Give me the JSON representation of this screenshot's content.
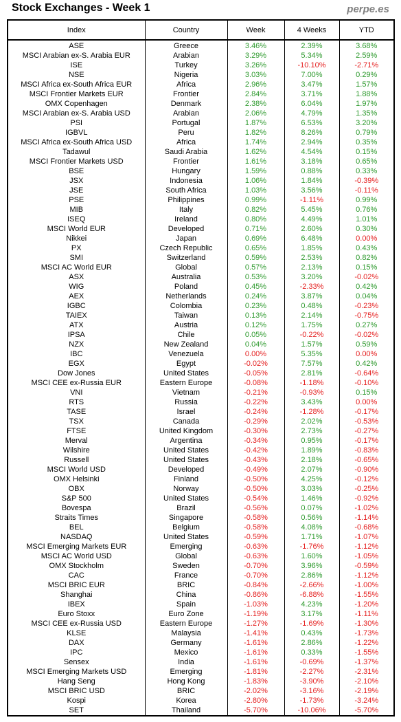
{
  "page": {
    "title": "Stock Exchanges - Week 1",
    "brand": "perpe.es"
  },
  "colors": {
    "positive": "#2e9a2e",
    "negative": "#e52020",
    "zero": "#e52020",
    "border": "#000000",
    "brand": "#808080"
  },
  "chart_data": {
    "type": "table",
    "title": "Stock Exchanges - Week 1",
    "columns": [
      "Index",
      "Country",
      "Week",
      "4 Weeks",
      "YTD"
    ],
    "rows": [
      [
        "ASE",
        "Greece",
        "3.46%",
        "2.39%",
        "3.68%"
      ],
      [
        "MSCI Arabian ex-S. Arabia EUR",
        "Arabian",
        "3.29%",
        "5.34%",
        "2.59%"
      ],
      [
        "ISE",
        "Turkey",
        "3.26%",
        "-10.10%",
        "-2.71%"
      ],
      [
        "NSE",
        "Nigeria",
        "3.03%",
        "7.00%",
        "0.29%"
      ],
      [
        "MSCI Africa ex-South Africa EUR",
        "Africa",
        "2.96%",
        "3.47%",
        "1.57%"
      ],
      [
        "MSCI Frontier Markets EUR",
        "Frontier",
        "2.84%",
        "3.71%",
        "1.88%"
      ],
      [
        "OMX Copenhagen",
        "Denmark",
        "2.38%",
        "6.04%",
        "1.97%"
      ],
      [
        "MSCI Arabian ex-S. Arabia USD",
        "Arabian",
        "2.06%",
        "4.79%",
        "1.35%"
      ],
      [
        "PSI",
        "Portugal",
        "1.87%",
        "6.53%",
        "3.20%"
      ],
      [
        "IGBVL",
        "Peru",
        "1.82%",
        "8.26%",
        "0.79%"
      ],
      [
        "MSCI Africa ex-South Africa USD",
        "Africa",
        "1.74%",
        "2.94%",
        "0.35%"
      ],
      [
        "Tadawul",
        "Saudi Arabia",
        "1.62%",
        "4.54%",
        "0.15%"
      ],
      [
        "MSCI Frontier Markets USD",
        "Frontier",
        "1.61%",
        "3.18%",
        "0.65%"
      ],
      [
        "BSE",
        "Hungary",
        "1.59%",
        "0.88%",
        "0.33%"
      ],
      [
        "JSX",
        "Indonesia",
        "1.06%",
        "1.84%",
        "-0.39%"
      ],
      [
        "JSE",
        "South Africa",
        "1.03%",
        "3.56%",
        "-0.11%"
      ],
      [
        "PSE",
        "Philippines",
        "0.99%",
        "-1.11%",
        "0.99%"
      ],
      [
        "MIB",
        "Italy",
        "0.82%",
        "5.45%",
        "0.76%"
      ],
      [
        "ISEQ",
        "Ireland",
        "0.80%",
        "4.49%",
        "1.01%"
      ],
      [
        "MSCI World EUR",
        "Developed",
        "0.71%",
        "2.60%",
        "0.30%"
      ],
      [
        "Nikkei",
        "Japan",
        "0.69%",
        "6.48%",
        "0.00%"
      ],
      [
        "PX",
        "Czech Republic",
        "0.65%",
        "1.85%",
        "0.43%"
      ],
      [
        "SMI",
        "Switzerland",
        "0.59%",
        "2.53%",
        "0.82%"
      ],
      [
        "MSCI AC World EUR",
        "Global",
        "0.57%",
        "2.13%",
        "0.15%"
      ],
      [
        "ASX",
        "Australia",
        "0.53%",
        "3.20%",
        "-0.02%"
      ],
      [
        "WIG",
        "Poland",
        "0.45%",
        "-2.33%",
        "0.42%"
      ],
      [
        "AEX",
        "Netherlands",
        "0.24%",
        "3.87%",
        "0.04%"
      ],
      [
        "IGBC",
        "Colombia",
        "0.23%",
        "0.48%",
        "-0.23%"
      ],
      [
        "TAIEX",
        "Taiwan",
        "0.13%",
        "2.14%",
        "-0.75%"
      ],
      [
        "ATX",
        "Austria",
        "0.12%",
        "1.75%",
        "0.27%"
      ],
      [
        "IPSA",
        "Chile",
        "0.05%",
        "-0.22%",
        "-0.02%"
      ],
      [
        "NZX",
        "New Zealand",
        "0.04%",
        "1.57%",
        "0.59%"
      ],
      [
        "IBC",
        "Venezuela",
        "0.00%",
        "5.35%",
        "0.00%"
      ],
      [
        "EGX",
        "Egypt",
        "-0.02%",
        "7.57%",
        "0.42%"
      ],
      [
        "Dow Jones",
        "United States",
        "-0.05%",
        "2.81%",
        "-0.64%"
      ],
      [
        "MSCI CEE ex-Russia EUR",
        "Eastern Europe",
        "-0.08%",
        "-1.18%",
        "-0.10%"
      ],
      [
        "VNI",
        "Vietnam",
        "-0.21%",
        "-0.93%",
        "0.15%"
      ],
      [
        "RTS",
        "Russia",
        "-0.22%",
        "3.43%",
        "0.00%"
      ],
      [
        "TASE",
        "Israel",
        "-0.24%",
        "-1.28%",
        "-0.17%"
      ],
      [
        "TSX",
        "Canada",
        "-0.29%",
        "2.02%",
        "-0.53%"
      ],
      [
        "FTSE",
        "United Kingdom",
        "-0.30%",
        "2.73%",
        "-0.27%"
      ],
      [
        "Merval",
        "Argentina",
        "-0.34%",
        "0.95%",
        "-0.17%"
      ],
      [
        "Wilshire",
        "United States",
        "-0.42%",
        "1.89%",
        "-0.83%"
      ],
      [
        "Russell",
        "United States",
        "-0.43%",
        "2.18%",
        "-0.65%"
      ],
      [
        "MSCI World USD",
        "Developed",
        "-0.49%",
        "2.07%",
        "-0.90%"
      ],
      [
        "OMX Helsinki",
        "Finland",
        "-0.50%",
        "4.25%",
        "-0.12%"
      ],
      [
        "OBX",
        "Norway",
        "-0.50%",
        "3.03%",
        "-0.25%"
      ],
      [
        "S&P 500",
        "United States",
        "-0.54%",
        "1.46%",
        "-0.92%"
      ],
      [
        "Bovespa",
        "Brazil",
        "-0.56%",
        "0.07%",
        "-1.02%"
      ],
      [
        "Straits Times",
        "Singapore",
        "-0.58%",
        "0.56%",
        "-1.14%"
      ],
      [
        "BEL",
        "Belgium",
        "-0.58%",
        "4.08%",
        "-0.68%"
      ],
      [
        "NASDAQ",
        "United States",
        "-0.59%",
        "1.71%",
        "-1.07%"
      ],
      [
        "MSCI Emerging Markets EUR",
        "Emerging",
        "-0.63%",
        "-1.76%",
        "-1.12%"
      ],
      [
        "MSCI AC World USD",
        "Global",
        "-0.63%",
        "1.60%",
        "-1.05%"
      ],
      [
        "OMX Stockholm",
        "Sweden",
        "-0.70%",
        "3.96%",
        "-0.59%"
      ],
      [
        "CAC",
        "France",
        "-0.70%",
        "2.86%",
        "-1.12%"
      ],
      [
        "MSCI BRIC EUR",
        "BRIC",
        "-0.84%",
        "-2.66%",
        "-1.00%"
      ],
      [
        "Shanghai",
        "China",
        "-0.86%",
        "-6.88%",
        "-1.55%"
      ],
      [
        "IBEX",
        "Spain",
        "-1.03%",
        "4.23%",
        "-1.20%"
      ],
      [
        "Euro Stoxx",
        "Euro Zone",
        "-1.19%",
        "3.17%",
        "-1.11%"
      ],
      [
        "MSCI CEE ex-Russia USD",
        "Eastern Europe",
        "-1.27%",
        "-1.69%",
        "-1.30%"
      ],
      [
        "KLSE",
        "Malaysia",
        "-1.41%",
        "0.43%",
        "-1.73%"
      ],
      [
        "DAX",
        "Germany",
        "-1.61%",
        "2.86%",
        "-1.22%"
      ],
      [
        "IPC",
        "Mexico",
        "-1.61%",
        "0.33%",
        "-1.55%"
      ],
      [
        "Sensex",
        "India",
        "-1.61%",
        "-0.69%",
        "-1.37%"
      ],
      [
        "MSCI Emerging Markets USD",
        "Emerging",
        "-1.81%",
        "-2.27%",
        "-2.31%"
      ],
      [
        "Hang Seng",
        "Hong Kong",
        "-1.83%",
        "-3.90%",
        "-2.10%"
      ],
      [
        "MSCI BRIC USD",
        "BRIC",
        "-2.02%",
        "-3.16%",
        "-2.19%"
      ],
      [
        "Kospi",
        "Korea",
        "-2.80%",
        "-1.73%",
        "-3.24%"
      ],
      [
        "SET",
        "Thailand",
        "-5.70%",
        "-10.06%",
        "-5.70%"
      ]
    ]
  }
}
